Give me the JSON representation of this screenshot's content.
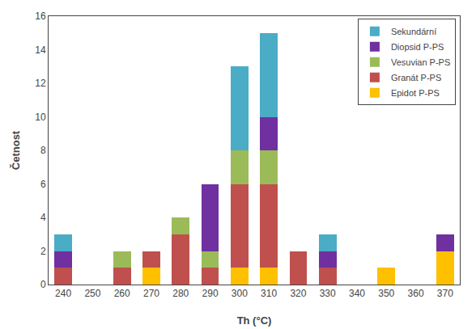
{
  "chart_data": {
    "type": "bar",
    "stacked": true,
    "xlabel": "Th (°C)",
    "ylabel": "Četnost",
    "categories": [
      240,
      250,
      260,
      270,
      280,
      290,
      300,
      310,
      320,
      330,
      340,
      350,
      360,
      370
    ],
    "series": [
      {
        "name": "Epidot P-PS",
        "color": "#FFC000",
        "values": [
          0,
          0,
          0,
          1,
          0,
          0,
          1,
          1,
          0,
          0,
          0,
          1,
          0,
          2
        ]
      },
      {
        "name": "Granát P-PS",
        "color": "#C0504D",
        "values": [
          1,
          0,
          1,
          1,
          3,
          1,
          5,
          5,
          2,
          1,
          0,
          0,
          0,
          0
        ]
      },
      {
        "name": "Vesuvian P-PS",
        "color": "#9BBB59",
        "values": [
          0,
          0,
          1,
          0,
          1,
          1,
          2,
          2,
          0,
          0,
          0,
          0,
          0,
          0
        ]
      },
      {
        "name": "Diopsid P-PS",
        "color": "#7030A0",
        "values": [
          1,
          0,
          0,
          0,
          0,
          4,
          0,
          2,
          0,
          1,
          0,
          0,
          0,
          1
        ]
      },
      {
        "name": "Sekundární",
        "color": "#4BACC6",
        "values": [
          1,
          0,
          0,
          0,
          0,
          0,
          5,
          5,
          0,
          1,
          0,
          0,
          0,
          0
        ]
      }
    ],
    "ylim": [
      0,
      16
    ],
    "yticks": [
      0,
      2,
      4,
      6,
      8,
      10,
      12,
      14,
      16
    ],
    "grid": false,
    "legend": "upper right"
  }
}
